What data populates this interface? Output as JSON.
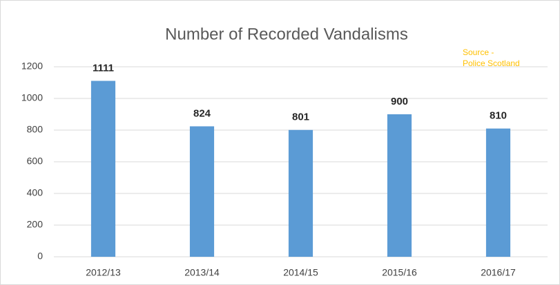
{
  "chart_data": {
    "type": "bar",
    "title": "Number of Recorded Vandalisms",
    "annotation": [
      "Source -",
      "Police Scotland"
    ],
    "categories": [
      "2012/13",
      "2013/14",
      "2014/15",
      "2015/16",
      "2016/17"
    ],
    "values": [
      1111,
      824,
      801,
      900,
      810
    ],
    "color": "#5b9bd5",
    "ylim": [
      0,
      1200
    ],
    "yticks": [
      0,
      200,
      400,
      600,
      800,
      1000,
      1200
    ],
    "grid": true
  }
}
